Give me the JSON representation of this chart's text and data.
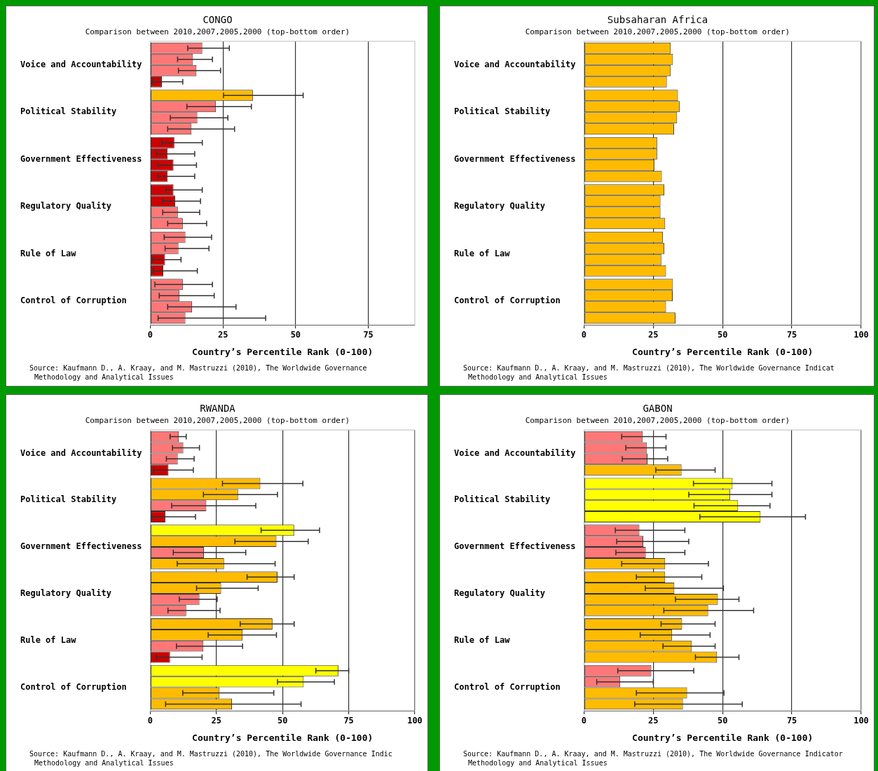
{
  "chart_data": [
    {
      "type": "bar",
      "orientation": "horizontal",
      "title": "CONGO",
      "subtitle": "Comparison between 2010,2007,2005,2000 (top-bottom order)",
      "xlabel": "Country’s Percentile Rank (0-100)",
      "categories": [
        "Voice and Accountability",
        "Political Stability",
        "Government Effectiveness",
        "Regulatory Quality",
        "Rule of Law",
        "Control of Corruption"
      ],
      "xlim": [
        0,
        91
      ],
      "xticks": [
        0,
        25,
        50,
        75
      ],
      "grid": "x",
      "legend": false,
      "series": [
        {
          "colors": [
            "#ff7777",
            "#ffbb00",
            "#cc0000",
            "#cc0000",
            "#ff7777",
            "#ff7777"
          ],
          "values": [
            17.9,
            35.3,
            8.3,
            8.0,
            12.1,
            11.2
          ],
          "errors": [
            [
              12.9,
              27.2
            ],
            [
              25.2,
              52.6
            ],
            [
              4.0,
              17.9
            ],
            [
              5.4,
              17.9
            ],
            [
              4.8,
              21.1
            ],
            [
              1.6,
              21.4
            ]
          ]
        },
        {
          "colors": [
            "#ff7777",
            "#ff7777",
            "#cc0000",
            "#cc0000",
            "#ff7777",
            "#ff7777"
          ],
          "values": [
            14.7,
            22.6,
            6.0,
            8.6,
            9.7,
            10.0
          ],
          "errors": [
            [
              9.4,
              21.4
            ],
            [
              12.6,
              34.8
            ],
            [
              2.2,
              15.3
            ],
            [
              4.3,
              17.3
            ],
            [
              5.1,
              20.2
            ],
            [
              3.1,
              22.0
            ]
          ]
        },
        {
          "colors": [
            "#ff7777",
            "#ff7777",
            "#cc0000",
            "#ff7777",
            "#cc0000",
            "#ff7777"
          ],
          "values": [
            15.9,
            16.2,
            8.0,
            9.5,
            5.1,
            14.4
          ],
          "errors": [
            [
              9.7,
              24.2
            ],
            [
              6.9,
              26.7
            ],
            [
              2.7,
              15.9
            ],
            [
              4.3,
              17.0
            ],
            [
              0.8,
              10.6
            ],
            [
              6.0,
              29.5
            ]
          ]
        },
        {
          "colors": [
            "#cc0000",
            "#ff7777",
            "#cc0000",
            "#ff7777",
            "#cc0000",
            "#ff7777"
          ],
          "values": [
            4.0,
            14.2,
            6.0,
            11.2,
            4.5,
            12.1
          ],
          "errors": [
            [
              0.8,
              11.2
            ],
            [
              6.0,
              29.0
            ],
            [
              2.7,
              15.3
            ],
            [
              6.0,
              19.4
            ],
            [
              1.0,
              16.2
            ],
            [
              2.7,
              39.7
            ]
          ]
        }
      ],
      "annotations": [
        "Source: Kaufmann D., A. Kraay, and M. Mastruzzi (2010), The Worldwide Governance",
        "Methodology and Analytical Issues"
      ]
    },
    {
      "type": "bar",
      "orientation": "horizontal",
      "title": "Subsaharan Africa",
      "subtitle": "Comparison between 2010,2007,2005,2000 (top-bottom order)",
      "xlabel": "Country’s Percentile Rank (0-100)",
      "categories": [
        "Voice and Accountability",
        "Political Stability",
        "Government Effectiveness",
        "Regulatory Quality",
        "Rule of Law",
        "Control of Corruption"
      ],
      "xlim": [
        0,
        100
      ],
      "xticks": [
        0,
        25,
        50,
        75,
        100
      ],
      "grid": "x",
      "legend": false,
      "series": [
        {
          "colors": [
            "#ffbb00",
            "#ffbb00",
            "#ffbb00",
            "#ffbb00",
            "#ffbb00",
            "#ffbb00"
          ],
          "values": [
            31.3,
            33.9,
            26.4,
            29.0,
            28.5,
            32.1
          ]
        },
        {
          "colors": [
            "#ffbb00",
            "#ffbb00",
            "#ffbb00",
            "#ffbb00",
            "#ffbb00",
            "#ffbb00"
          ],
          "values": [
            32.1,
            34.5,
            26.4,
            27.6,
            29.0,
            32.0
          ]
        },
        {
          "colors": [
            "#ffbb00",
            "#ffbb00",
            "#ffbb00",
            "#ffbb00",
            "#ffbb00",
            "#ffbb00"
          ],
          "values": [
            31.3,
            33.6,
            25.4,
            27.6,
            27.9,
            29.6
          ]
        },
        {
          "colors": [
            "#ffbb00",
            "#ffbb00",
            "#ffbb00",
            "#ffbb00",
            "#ffbb00",
            "#ffbb00"
          ],
          "values": [
            29.9,
            32.5,
            28.1,
            29.3,
            29.6,
            33.0
          ]
        }
      ],
      "annotations": [
        "Source: Kaufmann D., A. Kraay, and M. Mastruzzi (2010), The Worldwide Governance Indicat",
        "Methodology and Analytical Issues"
      ]
    },
    {
      "type": "bar",
      "orientation": "horizontal",
      "title": "RWANDA",
      "subtitle": "Comparison between 2010,2007,2005,2000 (top-bottom order)",
      "xlabel": "Country’s Percentile Rank (0-100)",
      "categories": [
        "Voice and Accountability",
        "Political Stability",
        "Government Effectiveness",
        "Regulatory Quality",
        "Rule of Law",
        "Control of Corruption"
      ],
      "xlim": [
        0,
        100
      ],
      "xticks": [
        0,
        25,
        50,
        75,
        100
      ],
      "grid": "x",
      "legend": false,
      "series": [
        {
          "colors": [
            "#ff7777",
            "#ffbb00",
            "#ffff00",
            "#ffbb00",
            "#ffbb00",
            "#ffff00"
          ],
          "values": [
            10.8,
            41.6,
            54.4,
            48.1,
            46.2,
            71.1
          ],
          "errors": [
            [
              7.5,
              13.6
            ],
            [
              27.3,
              57.7
            ],
            [
              41.9,
              64.0
            ],
            [
              36.6,
              54.4
            ],
            [
              34.0,
              54.4
            ],
            [
              62.6,
              75.0
            ]
          ]
        },
        {
          "colors": [
            "#ff7777",
            "#ffbb00",
            "#ffbb00",
            "#ffbb00",
            "#ffbb00",
            "#ffff00"
          ],
          "values": [
            12.5,
            33.2,
            47.7,
            26.8,
            34.9,
            58.0
          ],
          "errors": [
            [
              8.4,
              18.6
            ],
            [
              20.1,
              48.1
            ],
            [
              32.0,
              59.7
            ],
            [
              17.5,
              40.8
            ],
            [
              21.9,
              47.7
            ],
            [
              48.1,
              69.6
            ]
          ]
        },
        {
          "colors": [
            "#ff7777",
            "#ff7777",
            "#ff7777",
            "#ff7777",
            "#ff7777",
            "#ffbb00"
          ],
          "values": [
            10.4,
            21.2,
            20.3,
            18.6,
            20.1,
            26.2
          ],
          "errors": [
            [
              6.1,
              16.6
            ],
            [
              8.1,
              39.9
            ],
            [
              8.7,
              36.1
            ],
            [
              11.0,
              25.3
            ],
            [
              9.9,
              34.9
            ],
            [
              12.3,
              46.7
            ]
          ]
        },
        {
          "colors": [
            "#cc0000",
            "#cc0000",
            "#ffbb00",
            "#ff7777",
            "#cc0000",
            "#ffbb00"
          ],
          "values": [
            6.9,
            5.7,
            27.9,
            13.6,
            7.5,
            30.9
          ],
          "errors": [
            [
              1.3,
              16.3
            ],
            [
              0.7,
              17.1
            ],
            [
              10.2,
              47.2
            ],
            [
              6.7,
              26.4
            ],
            [
              2.3,
              19.6
            ],
            [
              5.8,
              57.0
            ]
          ]
        }
      ],
      "annotations": [
        "Source: Kaufmann D., A. Kraay, and M. Mastruzzi (2010), The Worldwide Governance Indic",
        "Methodology and Analytical Issues"
      ]
    },
    {
      "type": "bar",
      "orientation": "horizontal",
      "title": "GABON",
      "subtitle": "Comparison between 2010,2007,2005,2000 (top-bottom order)",
      "xlabel": "Country’s Percentile Rank (0-100)",
      "categories": [
        "Voice and Accountability",
        "Political Stability",
        "Government Effectiveness",
        "Regulatory Quality",
        "Rule of Law",
        "Control of Corruption"
      ],
      "xlim": [
        0,
        100
      ],
      "xticks": [
        0,
        25,
        50,
        75,
        100
      ],
      "grid": "x",
      "legend": false,
      "series": [
        {
          "colors": [
            "#ff7777",
            "#ffff00",
            "#ff7777",
            "#ffbb00",
            "#ffbb00",
            "#ff7777"
          ],
          "values": [
            21.2,
            53.6,
            20.0,
            29.3,
            35.4,
            24.3
          ],
          "errors": [
            [
              13.6,
              29.6
            ],
            [
              39.5,
              67.8
            ],
            [
              11.3,
              36.4
            ],
            [
              18.9,
              42.5
            ],
            [
              27.8,
              47.3
            ],
            [
              12.2,
              39.6
            ]
          ]
        },
        {
          "colors": [
            "#ff7777",
            "#ffff00",
            "#ff7777",
            "#ffbb00",
            "#ffbb00",
            "#ff7777"
          ],
          "values": [
            22.6,
            52.7,
            21.4,
            32.6,
            31.8,
            13.1
          ],
          "errors": [
            [
              15.1,
              29.6
            ],
            [
              37.8,
              67.8
            ],
            [
              11.8,
              37.8
            ],
            [
              22.1,
              50.3
            ],
            [
              20.3,
              45.5
            ],
            [
              4.6,
              25.0
            ]
          ]
        },
        {
          "colors": [
            "#ff7777",
            "#ffff00",
            "#ff7777",
            "#ffbb00",
            "#ffbb00",
            "#ffbb00"
          ],
          "values": [
            22.9,
            55.6,
            22.3,
            48.3,
            38.9,
            37.2
          ],
          "errors": [
            [
              13.8,
              30.2
            ],
            [
              39.7,
              67.1
            ],
            [
              11.5,
              36.4
            ],
            [
              33.0,
              55.9
            ],
            [
              28.5,
              47.3
            ],
            [
              18.9,
              50.5
            ]
          ]
        },
        {
          "colors": [
            "#ffbb00",
            "#ffff00",
            "#ffbb00",
            "#ffbb00",
            "#ffbb00",
            "#ffbb00"
          ],
          "values": [
            35.2,
            63.7,
            29.3,
            44.8,
            48.0,
            35.7
          ],
          "errors": [
            [
              25.9,
              47.3
            ],
            [
              41.8,
              79.9
            ],
            [
              13.6,
              44.9
            ],
            [
              28.8,
              61.2
            ],
            [
              40.2,
              55.9
            ],
            [
              18.3,
              57.1
            ]
          ]
        }
      ],
      "annotations": [
        "Source: Kaufmann D., A. Kraay, and M. Mastruzzi (2010), The Worldwide Governance Indicator",
        "Methodology and Analytical Issues"
      ]
    }
  ]
}
